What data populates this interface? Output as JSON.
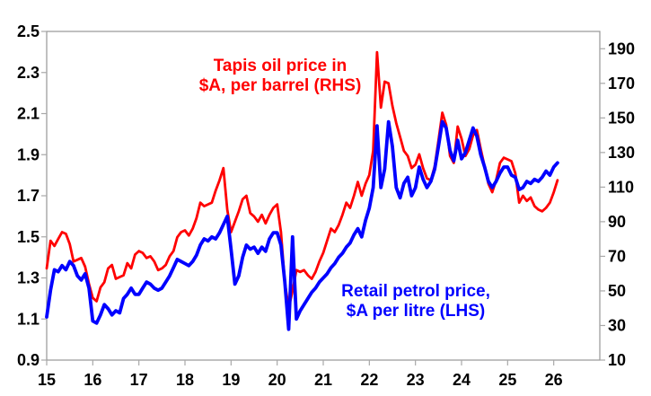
{
  "chart_data": {
    "type": "line",
    "title": "",
    "x_axis": {
      "tick_labels": [
        "15",
        "16",
        "17",
        "18",
        "19",
        "20",
        "21",
        "22",
        "23",
        "24",
        "25",
        "26"
      ],
      "tick_years": [
        2015,
        2016,
        2017,
        2018,
        2019,
        2020,
        2021,
        2022,
        2023,
        2024,
        2025,
        2026
      ],
      "range": [
        2015,
        2027
      ],
      "grid": false
    },
    "left_axis": {
      "ticks": [
        0.9,
        1.1,
        1.3,
        1.5,
        1.7,
        1.9,
        2.1,
        2.3,
        2.5
      ],
      "range": [
        0.9,
        2.5
      ],
      "decimals": 1
    },
    "right_axis": {
      "ticks": [
        10,
        30,
        50,
        70,
        90,
        110,
        130,
        150,
        170,
        190
      ],
      "range": [
        10,
        200
      ],
      "decimals": 0
    },
    "series": [
      {
        "name": "Tapis oil price in $A, per barrel (RHS)",
        "axis": "right",
        "color": "#ff0000",
        "line_width": 2.8,
        "x_start_year": 2015,
        "x_step_months": 1,
        "values": [
          63,
          79,
          76,
          80,
          84,
          83,
          77,
          67,
          68,
          69,
          64,
          54,
          46,
          44,
          52,
          55,
          63,
          65,
          57,
          58,
          59,
          66,
          63,
          71,
          73,
          72,
          69,
          70,
          67,
          62,
          63,
          65,
          70,
          73,
          81,
          84,
          85,
          82,
          86,
          92,
          101,
          99,
          100,
          101,
          108,
          114,
          121,
          97,
          84,
          90,
          96,
          103,
          105,
          95,
          93,
          90,
          94,
          89,
          94,
          98,
          100,
          84,
          55,
          40,
          50,
          62,
          61,
          62,
          59,
          57,
          61,
          67,
          72,
          79,
          86,
          84,
          88,
          94,
          101,
          98,
          105,
          113,
          105,
          112,
          117,
          131,
          188,
          156,
          171,
          170,
          157,
          147,
          139,
          131,
          128,
          121,
          123,
          129,
          121,
          115,
          114,
          122,
          137,
          153,
          146,
          128,
          124,
          145,
          138,
          128,
          132,
          140,
          143,
          132,
          122,
          112,
          107,
          114,
          124,
          127,
          126,
          125,
          118,
          101,
          105,
          102,
          104,
          99,
          97,
          96,
          98,
          101,
          107,
          114
        ]
      },
      {
        "name": "Retail petrol price, $A per litre (LHS)",
        "axis": "left",
        "color": "#0000ff",
        "line_width": 3.8,
        "x_start_year": 2015,
        "x_step_months": 1,
        "values": [
          1.11,
          1.24,
          1.34,
          1.33,
          1.36,
          1.34,
          1.38,
          1.36,
          1.31,
          1.29,
          1.32,
          1.25,
          1.09,
          1.08,
          1.12,
          1.17,
          1.15,
          1.12,
          1.14,
          1.13,
          1.2,
          1.22,
          1.25,
          1.22,
          1.22,
          1.25,
          1.28,
          1.27,
          1.25,
          1.24,
          1.25,
          1.28,
          1.31,
          1.35,
          1.39,
          1.38,
          1.37,
          1.36,
          1.38,
          1.41,
          1.46,
          1.49,
          1.48,
          1.5,
          1.49,
          1.52,
          1.56,
          1.6,
          1.44,
          1.27,
          1.31,
          1.4,
          1.46,
          1.44,
          1.45,
          1.42,
          1.45,
          1.43,
          1.49,
          1.52,
          1.52,
          1.46,
          1.28,
          1.05,
          1.5,
          1.1,
          1.14,
          1.17,
          1.2,
          1.23,
          1.25,
          1.28,
          1.3,
          1.32,
          1.35,
          1.37,
          1.4,
          1.42,
          1.45,
          1.47,
          1.51,
          1.54,
          1.5,
          1.58,
          1.64,
          1.74,
          2.04,
          1.74,
          1.83,
          2.06,
          1.94,
          1.74,
          1.69,
          1.76,
          1.79,
          1.7,
          1.74,
          1.84,
          1.78,
          1.74,
          1.77,
          1.83,
          1.94,
          2.06,
          2.03,
          1.92,
          1.87,
          1.97,
          1.88,
          1.91,
          1.97,
          2.03,
          1.99,
          1.9,
          1.84,
          1.77,
          1.74,
          1.77,
          1.81,
          1.84,
          1.84,
          1.8,
          1.79,
          1.73,
          1.74,
          1.77,
          1.76,
          1.78,
          1.77,
          1.79,
          1.82,
          1.8,
          1.84,
          1.86
        ]
      }
    ],
    "annotations": [
      {
        "line1": "Tapis oil price in",
        "line2": "$A, per barrel (RHS)",
        "color": "#ff0000"
      },
      {
        "line1": "Retail petrol price,",
        "line2": "$A per litre (LHS)",
        "color": "#0000ff"
      }
    ],
    "legend_position": "none",
    "axis_color": "#969696",
    "tick_color": "#a8a8a8",
    "label_color": "#000000"
  }
}
